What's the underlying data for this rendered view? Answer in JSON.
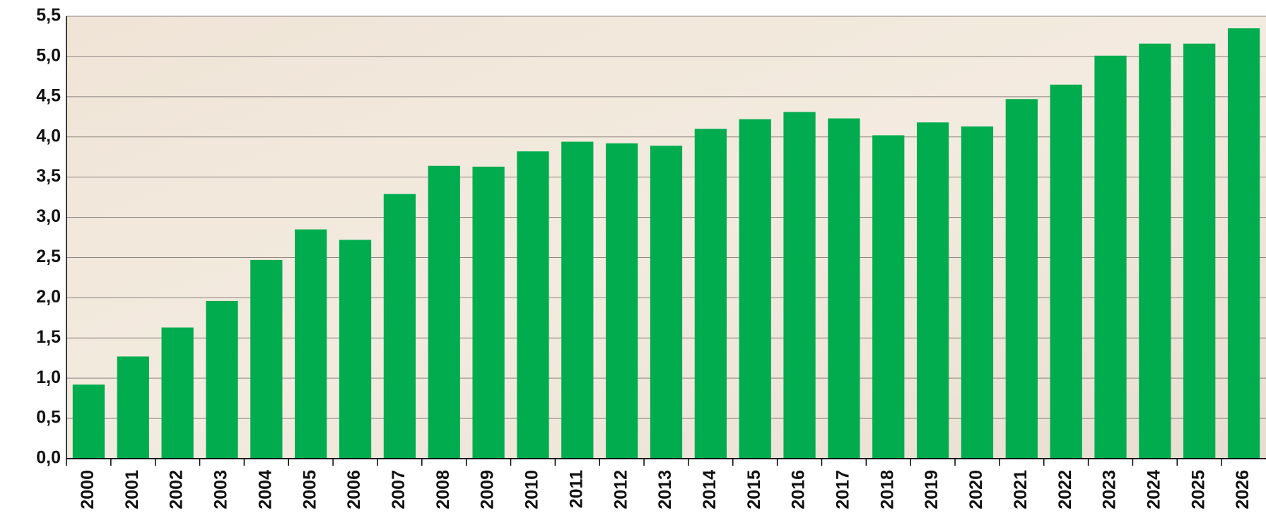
{
  "chart_data": {
    "type": "bar",
    "categories": [
      "2000",
      "2001",
      "2002",
      "2003",
      "2004",
      "2005",
      "2006",
      "2007",
      "2008",
      "2009",
      "2010",
      "2011",
      "2012",
      "2013",
      "2014",
      "2015",
      "2016",
      "2017",
      "2018",
      "2019",
      "2020",
      "2021",
      "2022",
      "2023",
      "2024",
      "2025",
      "2026"
    ],
    "values": [
      0.92,
      1.27,
      1.63,
      1.96,
      2.47,
      2.85,
      2.72,
      3.29,
      3.64,
      3.63,
      3.82,
      3.94,
      3.92,
      3.89,
      4.1,
      4.22,
      4.31,
      4.23,
      4.02,
      4.18,
      4.13,
      4.47,
      4.65,
      5.01,
      5.16,
      5.16,
      5.35
    ],
    "color": "#00ac4e",
    "ylim": [
      0,
      5.5
    ],
    "yticks": [
      {
        "value": 0,
        "label": "0,0"
      },
      {
        "value": 0.5,
        "label": "0,5"
      },
      {
        "value": 1,
        "label": "1,0"
      },
      {
        "value": 1.5,
        "label": "1,5"
      },
      {
        "value": 2,
        "label": "2,0"
      },
      {
        "value": 2.5,
        "label": "2,5"
      },
      {
        "value": 3,
        "label": "3,0"
      },
      {
        "value": 3.5,
        "label": "3,5"
      },
      {
        "value": 4,
        "label": "4,0"
      },
      {
        "value": 4.5,
        "label": "4,5"
      },
      {
        "value": 5,
        "label": "5,0"
      },
      {
        "value": 5.5,
        "label": "5,5"
      }
    ],
    "grid": true
  }
}
